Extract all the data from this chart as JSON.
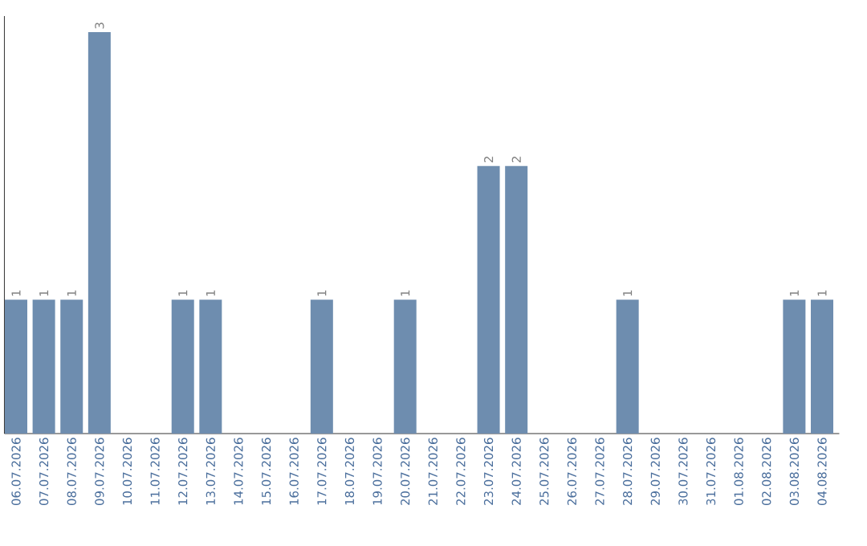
{
  "chart_data": {
    "type": "bar",
    "color": "#6e8daf",
    "data_labels": true,
    "categories": [
      "06.07.2026",
      "07.07.2026",
      "08.07.2026",
      "09.07.2026",
      "10.07.2026",
      "11.07.2026",
      "12.07.2026",
      "13.07.2026",
      "14.07.2026",
      "15.07.2026",
      "16.07.2026",
      "17.07.2026",
      "18.07.2026",
      "19.07.2026",
      "20.07.2026",
      "21.07.2026",
      "22.07.2026",
      "23.07.2026",
      "24.07.2026",
      "25.07.2026",
      "26.07.2026",
      "27.07.2026",
      "28.07.2026",
      "29.07.2026",
      "30.07.2026",
      "31.07.2026",
      "01.08.2026",
      "02.08.2026",
      "03.08.2026",
      "04.08.2026"
    ],
    "values": [
      1,
      1,
      1,
      3,
      0,
      0,
      1,
      1,
      0,
      0,
      0,
      1,
      0,
      0,
      1,
      0,
      0,
      2,
      2,
      0,
      0,
      0,
      1,
      0,
      0,
      0,
      0,
      0,
      1,
      1
    ],
    "value_labels": [
      "1",
      "1",
      "1",
      "3",
      null,
      null,
      "1",
      "1",
      null,
      null,
      null,
      "1",
      null,
      null,
      "1",
      null,
      null,
      "2",
      "2",
      null,
      null,
      null,
      "1",
      null,
      null,
      null,
      null,
      null,
      "1",
      "1"
    ]
  }
}
